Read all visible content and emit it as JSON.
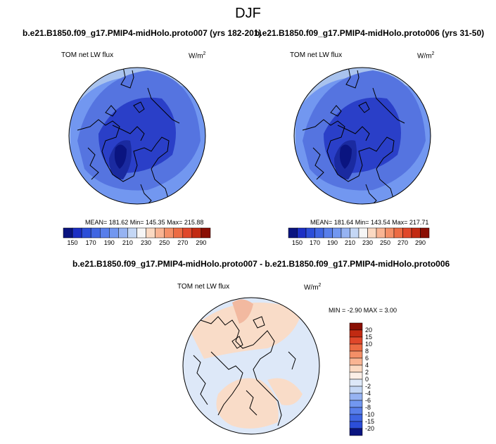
{
  "figure": {
    "season": "DJF",
    "diff_title": "b.e21.B1850.f09_g17.PMIP4-midHolo.proto007 - b.e21.B1850.f09_g17.PMIP4-midHolo.proto006"
  },
  "colors": {
    "ocean_fill": "#5574e0",
    "land_dark": "#2a3fc8",
    "land_darkest": "#1a2aa0",
    "light_blue": "#a9c3ee",
    "diff_bg": "#dde8f8",
    "diff_warm": "#f9dcc8",
    "coast": "#000000"
  },
  "chart_data": [
    {
      "type": "heatmap",
      "projection": "north-polar-stereographic",
      "title": "b.e21.B1850.f09_g17.PMIP4-midHolo.proto007 (yrs 182-201)",
      "variable": "TOM net LW flux",
      "units": "W/m",
      "units_exp": "2",
      "stats": {
        "mean": 181.62,
        "min": 145.35,
        "max": 215.88
      },
      "stats_text": "MEAN= 181.62  Min= 145.35  Max= 215.88",
      "colorbar": {
        "orientation": "horizontal",
        "levels": [
          150,
          160,
          170,
          180,
          190,
          200,
          210,
          220,
          230,
          240,
          250,
          260,
          270,
          280,
          290
        ],
        "tick_labels": [
          "150",
          "170",
          "190",
          "210",
          "230",
          "250",
          "270",
          "290"
        ],
        "colors": [
          "#0a1480",
          "#1c2fc4",
          "#2c4ed8",
          "#3f65e2",
          "#587eea",
          "#7297f0",
          "#96b3f2",
          "#c4d7f5",
          "#f6f6f6",
          "#fbd9c2",
          "#f9b493",
          "#f48f67",
          "#ec6b43",
          "#e0472a",
          "#c22a12",
          "#8a0f04"
        ]
      }
    },
    {
      "type": "heatmap",
      "projection": "north-polar-stereographic",
      "title": "b.e21.B1850.f09_g17.PMIP4-midHolo.proto006 (yrs 31-50)",
      "variable": "TOM net LW flux",
      "units": "W/m",
      "units_exp": "2",
      "stats": {
        "mean": 181.64,
        "min": 143.54,
        "max": 217.71
      },
      "stats_text": "MEAN= 181.64  Min= 143.54  Max= 217.71",
      "colorbar": {
        "orientation": "horizontal",
        "levels": [
          150,
          160,
          170,
          180,
          190,
          200,
          210,
          220,
          230,
          240,
          250,
          260,
          270,
          280,
          290
        ],
        "tick_labels": [
          "150",
          "170",
          "190",
          "210",
          "230",
          "250",
          "270",
          "290"
        ],
        "colors": [
          "#0a1480",
          "#1c2fc4",
          "#2c4ed8",
          "#3f65e2",
          "#587eea",
          "#7297f0",
          "#96b3f2",
          "#c4d7f5",
          "#f6f6f6",
          "#fbd9c2",
          "#f9b493",
          "#f48f67",
          "#ec6b43",
          "#e0472a",
          "#c22a12",
          "#8a0f04"
        ]
      }
    },
    {
      "type": "heatmap",
      "projection": "north-polar-stereographic",
      "title": "b.e21.B1850.f09_g17.PMIP4-midHolo.proto007 - b.e21.B1850.f09_g17.PMIP4-midHolo.proto006",
      "variable": "TOM net LW flux",
      "units": "W/m",
      "units_exp": "2",
      "stats": {
        "min": -2.9,
        "max": 3.0
      },
      "stats_text": "MIN =  -2.90 MAX =   3.00",
      "colorbar": {
        "orientation": "vertical",
        "levels": [
          -20,
          -15,
          -10,
          -8,
          -6,
          -4,
          -2,
          0,
          2,
          4,
          6,
          8,
          10,
          15,
          20
        ],
        "tick_labels": [
          "20",
          "15",
          "10",
          "8",
          "6",
          "4",
          "2",
          "0",
          "-2",
          "-4",
          "-6",
          "-8",
          "-10",
          "-15",
          "-20"
        ],
        "colors": [
          "#8a0f04",
          "#c22a12",
          "#e0472a",
          "#ec6b43",
          "#f48f67",
          "#f9b493",
          "#fbd9c2",
          "#fbeee6",
          "#dde8f8",
          "#c4d7f5",
          "#96b3f2",
          "#7297f0",
          "#587eea",
          "#3f65e2",
          "#2c4ed8",
          "#0a1480"
        ]
      }
    }
  ]
}
